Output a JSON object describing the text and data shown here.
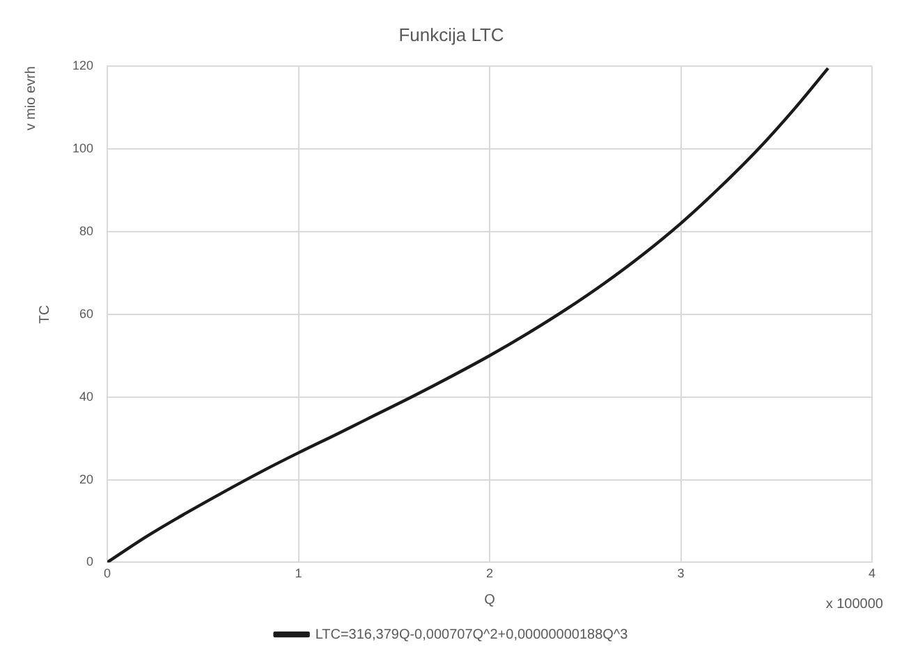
{
  "chart_data": {
    "type": "line",
    "title": "Funkcija LTC",
    "xlabel": "Q",
    "ylabel": "TC",
    "annotations": [
      "v mio evrh",
      "x 100000"
    ],
    "x": [
      0,
      0.2,
      0.4,
      0.6,
      0.8,
      1.0,
      1.2,
      1.4,
      1.6,
      1.8,
      2.0,
      2.2,
      2.4,
      2.6,
      2.8,
      3.0,
      3.2,
      3.4,
      3.6,
      3.77
    ],
    "series": [
      {
        "name": "LTC=316,379Q-0,000707Q^2+0,00000000188Q^3",
        "color": "#1a1a1a",
        "values": [
          0,
          6.1,
          11.6,
          16.8,
          21.8,
          26.5,
          31,
          35.6,
          40.2,
          45,
          50,
          55.4,
          61.2,
          67.5,
          74.4,
          82,
          90.5,
          99.7,
          110,
          119.5
        ]
      }
    ],
    "xlim": [
      0,
      4
    ],
    "xticks": [
      0,
      1,
      2,
      3,
      4
    ],
    "ylim": [
      0,
      120
    ],
    "yticks": [
      0,
      20,
      40,
      60,
      80,
      100,
      120
    ],
    "grid": true,
    "legend": "bottom",
    "marker": "none",
    "line_style": "solid"
  }
}
